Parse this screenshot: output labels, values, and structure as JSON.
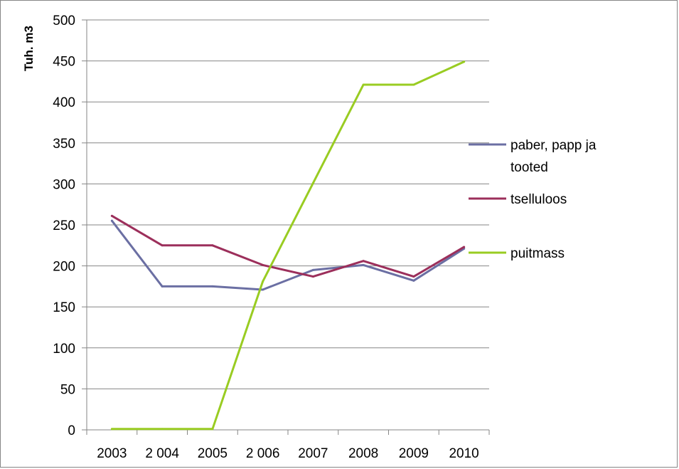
{
  "chart_data": {
    "type": "line",
    "title": "",
    "xlabel": "",
    "ylabel": "Tuh. m3",
    "ylim": [
      0,
      500
    ],
    "yticks": [
      0,
      50,
      100,
      150,
      200,
      250,
      300,
      350,
      400,
      450,
      500
    ],
    "categories": [
      "2003",
      "2 004",
      "2005",
      "2 006",
      "2007",
      "2008",
      "2009",
      "2010"
    ],
    "grid": "horizontal",
    "legend_position": "right",
    "series": [
      {
        "name": "paber, papp ja tooted",
        "name_lines": [
          "paber, papp ja",
          "tooted"
        ],
        "color": "#6B6FA3",
        "values": [
          255,
          175,
          175,
          171,
          195,
          201,
          182,
          221
        ]
      },
      {
        "name": "tselluloos",
        "name_lines": [
          "tselluloos"
        ],
        "color": "#9C2F5B",
        "values": [
          261,
          225,
          225,
          201,
          187,
          206,
          187,
          223
        ]
      },
      {
        "name": "puitmass",
        "name_lines": [
          "puitmass"
        ],
        "color": "#99CC22",
        "values": [
          1,
          1,
          1,
          181,
          301,
          421,
          421,
          449
        ]
      }
    ]
  }
}
